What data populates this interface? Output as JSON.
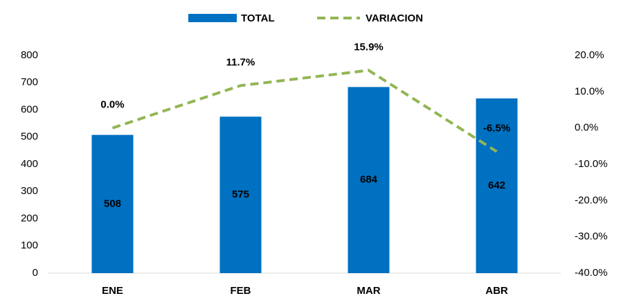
{
  "chart_data": {
    "type": "bar",
    "categories": [
      "ENE",
      "FEB",
      "MAR",
      "ABR"
    ],
    "series": [
      {
        "name": "TOTAL",
        "type": "bar",
        "color": "#0070c0",
        "values": [
          508,
          575,
          684,
          642
        ]
      },
      {
        "name": "VARIACION",
        "type": "line",
        "axis": "y2",
        "color": "#92b654",
        "dashed": true,
        "values": [
          0.0,
          11.7,
          15.9,
          -6.5
        ],
        "value_labels": [
          "0.0%",
          "11.7%",
          "15.9%",
          "-6.5%"
        ],
        "value_label_colors": [
          "#000000",
          "#595959",
          "#595959",
          "#ffffff"
        ]
      }
    ],
    "ylim": [
      0,
      800
    ],
    "yticks": [
      0,
      100,
      200,
      300,
      400,
      500,
      600,
      700,
      800
    ],
    "y2lim": [
      -40,
      20
    ],
    "y2ticks": [
      {
        "value": -40,
        "label": "-40.0%"
      },
      {
        "value": -30,
        "label": "-30.0%"
      },
      {
        "value": -20,
        "label": "-20.0%"
      },
      {
        "value": -10,
        "label": "-10.0%"
      },
      {
        "value": 0,
        "label": "0.0%"
      },
      {
        "value": 10,
        "label": "10.0%"
      },
      {
        "value": 20,
        "label": "20.0%"
      }
    ],
    "grid": false,
    "legend": "top"
  }
}
